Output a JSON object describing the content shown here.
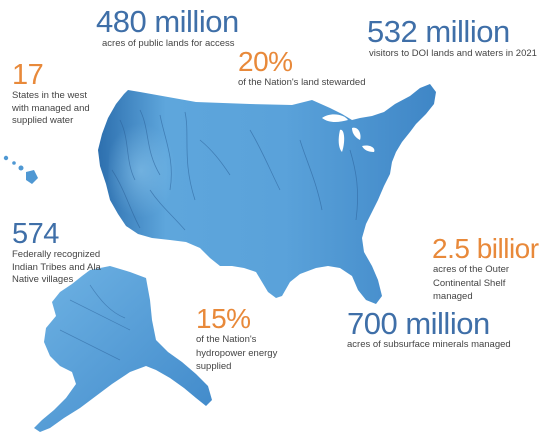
{
  "colors": {
    "figure_blue": "#3f6fa8",
    "accent_orange": "#e8893a",
    "map_light": "#7fc1ea",
    "map_mid": "#4f98d3",
    "map_dark": "#2565a6",
    "label_text": "#444444"
  },
  "stats": [
    {
      "figure": "480 million",
      "label": [
        "acres of public lands for access"
      ],
      "color": "blue"
    },
    {
      "figure": "532 million",
      "label": [
        "visitors to DOI lands and waters in 2021"
      ],
      "color": "blue"
    },
    {
      "figure": "20%",
      "label": [
        "of the Nation's land stewarded"
      ],
      "color": "orange"
    },
    {
      "figure": "17",
      "label": [
        "States in the west",
        "with managed and",
        "supplied water"
      ],
      "color": "orange"
    },
    {
      "figure": "574",
      "label": [
        "Federally recognized",
        "Indian Tribes and Ala",
        "Native villages"
      ],
      "color": "blue"
    },
    {
      "figure": "2.5 billior",
      "label": [
        "acres of the Outer",
        "Continental Shelf",
        "managed"
      ],
      "color": "orange"
    },
    {
      "figure": "15%",
      "label": [
        "of the Nation's",
        "hydropower energy",
        "supplied"
      ],
      "color": "orange"
    },
    {
      "figure": "700 million",
      "label": [
        "acres of subsurface minerals managed"
      ],
      "color": "blue"
    }
  ]
}
